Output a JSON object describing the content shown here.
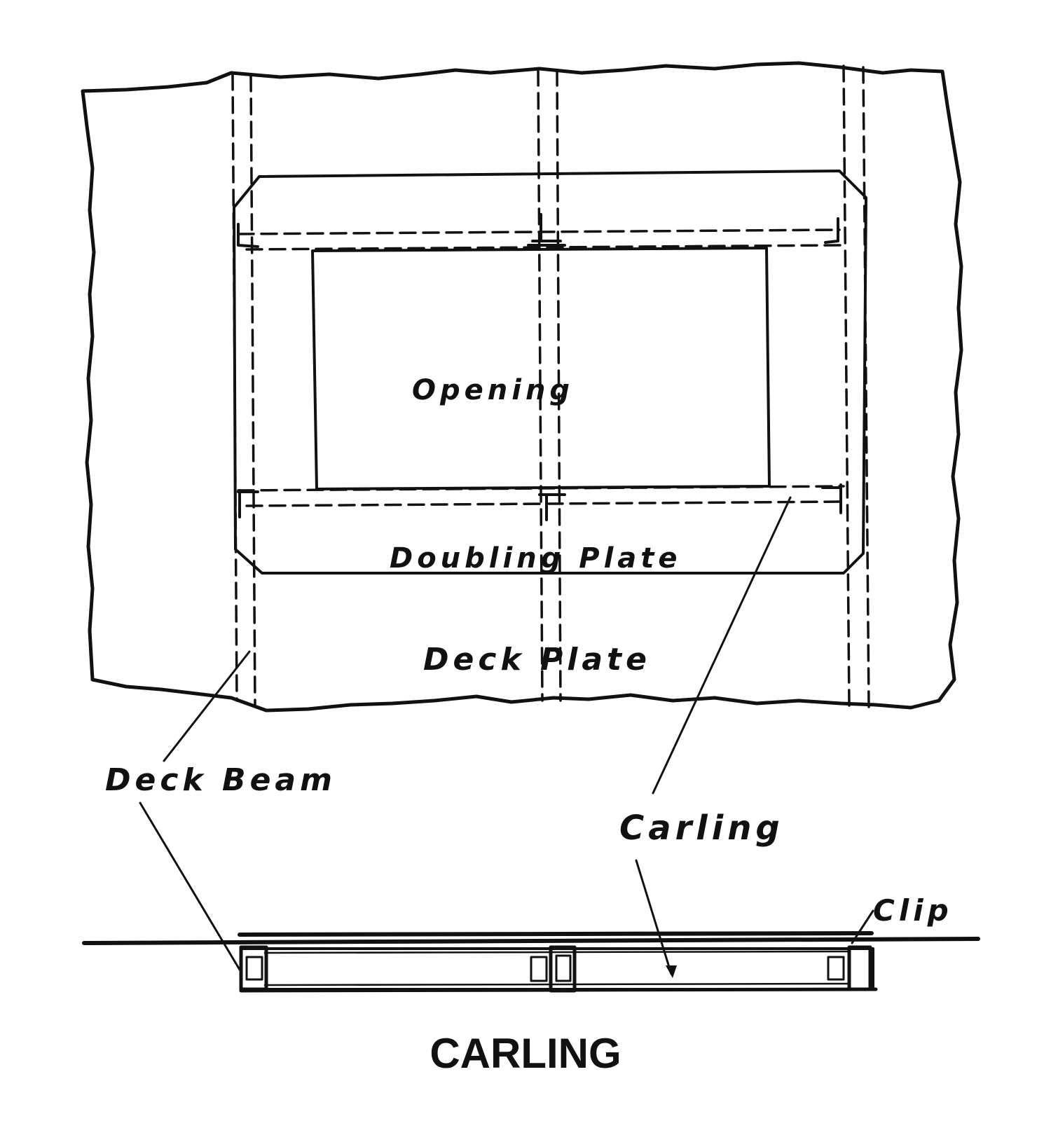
{
  "labels": {
    "opening": "Opening",
    "doubling_plate": "Doubling Plate",
    "deck_plate": "Deck Plate",
    "deck_beam": "Deck Beam",
    "carling": "Carling",
    "clip": "Clip"
  },
  "caption": "CARLING",
  "colors": {
    "ink": "#111111",
    "paper": "#ffffff"
  }
}
